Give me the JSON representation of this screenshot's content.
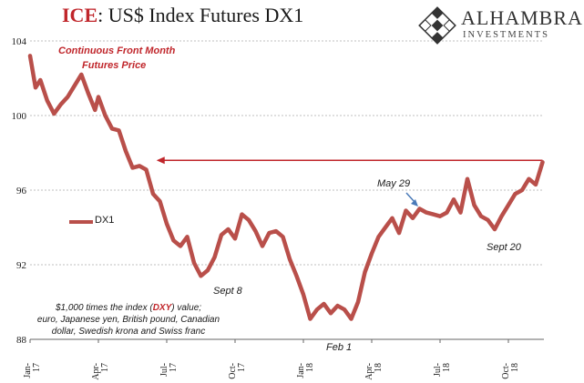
{
  "header": {
    "title_prefix": "ICE",
    "title_rest": ": US$ Index Futures DX1"
  },
  "brand": {
    "name": "ALHAMBRA",
    "sub": "INVESTMENTS"
  },
  "annotations": {
    "continuous_line1": "Continuous  Front Month",
    "continuous_line2": "Futures Price",
    "sept8": "Sept 8",
    "feb1": "Feb 1",
    "may29": "May 29",
    "sept20": "Sept 20"
  },
  "footnote": {
    "line1_pre": "$1,000 times the index (",
    "line1_red": "DXY",
    "line1_post": ") value;",
    "line2": "euro, Japanese yen, British pound, Canadian",
    "line3": "dollar, Swedish krona and Swiss franc"
  },
  "colors": {
    "series": "#b94f4a",
    "accent_red": "#c0262b",
    "arrow_blue": "#4a7ab8",
    "grid": "#bfbfbf"
  },
  "chart_data": {
    "type": "line",
    "title": "ICE: US$ Index Futures DX1",
    "ylim": [
      88,
      104
    ],
    "y_ticks": [
      "88",
      "92",
      "96",
      "100",
      "104"
    ],
    "x_ticks": [
      {
        "top": "Jan-",
        "bottom": "17",
        "index": 0
      },
      {
        "top": "Apr-",
        "bottom": "17",
        "index": 1
      },
      {
        "top": "Jul-",
        "bottom": "17",
        "index": 2
      },
      {
        "top": "Oct-",
        "bottom": "17",
        "index": 3
      },
      {
        "top": "Jan-",
        "bottom": "18",
        "index": 4
      },
      {
        "top": "Apr-",
        "bottom": "18",
        "index": 5
      },
      {
        "top": "Jul-",
        "bottom": "18",
        "index": 6
      },
      {
        "top": "Oct-",
        "bottom": "18",
        "index": 7
      }
    ],
    "grid": true,
    "legend": {
      "placement": "left-middle"
    },
    "series": [
      {
        "name": "DX1",
        "x": [
          0,
          0.08,
          0.15,
          0.25,
          0.35,
          0.45,
          0.55,
          0.65,
          0.75,
          0.85,
          0.95,
          1.0,
          1.1,
          1.2,
          1.3,
          1.4,
          1.5,
          1.6,
          1.7,
          1.8,
          1.9,
          2.0,
          2.1,
          2.2,
          2.3,
          2.4,
          2.5,
          2.6,
          2.7,
          2.8,
          2.9,
          3.0,
          3.1,
          3.2,
          3.3,
          3.4,
          3.5,
          3.6,
          3.7,
          3.8,
          3.9,
          4.0,
          4.1,
          4.2,
          4.3,
          4.4,
          4.5,
          4.6,
          4.7,
          4.8,
          4.9,
          5.0,
          5.1,
          5.2,
          5.3,
          5.4,
          5.5,
          5.6,
          5.7,
          5.8,
          5.9,
          6.0,
          6.1,
          6.2,
          6.3,
          6.4,
          6.5,
          6.6,
          6.7,
          6.8,
          6.9,
          7.0,
          7.1,
          7.2,
          7.3,
          7.4,
          7.5
        ],
        "values": [
          103.2,
          101.5,
          101.9,
          100.8,
          100.1,
          100.6,
          101.0,
          101.6,
          102.2,
          101.2,
          100.3,
          101.0,
          100.0,
          99.3,
          99.2,
          98.1,
          97.2,
          97.3,
          97.1,
          95.8,
          95.4,
          94.2,
          93.3,
          93.0,
          93.5,
          92.1,
          91.4,
          91.7,
          92.4,
          93.6,
          93.9,
          93.4,
          94.7,
          94.4,
          93.8,
          93.0,
          93.7,
          93.8,
          93.5,
          92.3,
          91.4,
          90.4,
          89.1,
          89.6,
          89.9,
          89.4,
          89.8,
          89.6,
          89.1,
          90.0,
          91.6,
          92.6,
          93.5,
          94.0,
          94.5,
          93.7,
          94.9,
          94.5,
          95.0,
          94.8,
          94.7,
          94.6,
          94.8,
          95.5,
          94.8,
          96.6,
          95.2,
          94.6,
          94.4,
          93.9,
          94.6,
          95.2,
          95.8,
          96.0,
          96.6,
          96.3,
          97.5
        ],
        "color": "#b94f4a"
      }
    ],
    "reference_arrow": {
      "x_from": 7.5,
      "x_to": 1.85,
      "y": 97.6
    }
  }
}
